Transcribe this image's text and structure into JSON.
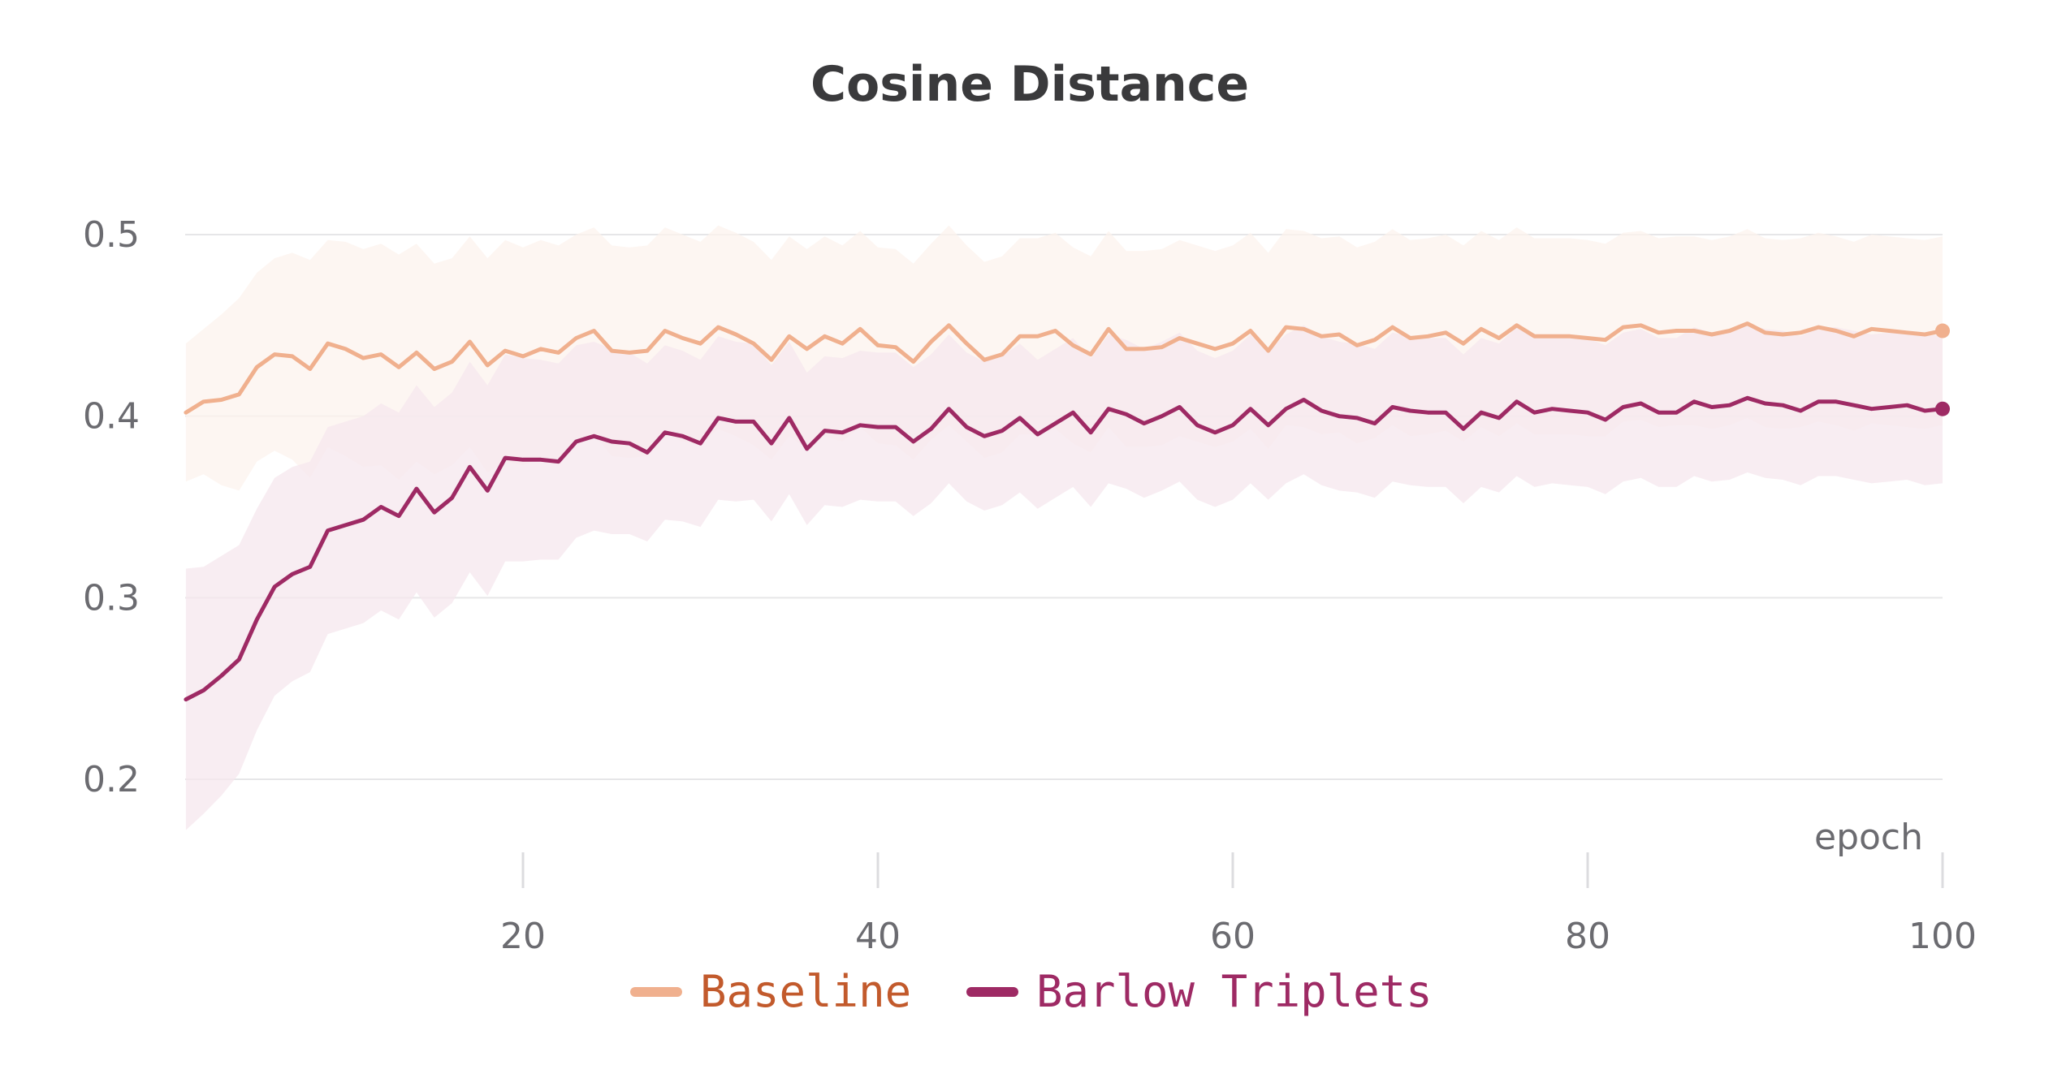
{
  "chart_data": {
    "type": "line",
    "title": "Cosine Distance",
    "xlabel": "epoch",
    "ylabel": "",
    "xlim": [
      1,
      100
    ],
    "ylim": [
      0.17,
      0.51
    ],
    "xticks": [
      20,
      40,
      60,
      80,
      100
    ],
    "xtick_labels": [
      "20",
      "40",
      "60",
      "80",
      "100"
    ],
    "yticks": [
      0.2,
      0.3,
      0.4,
      0.5
    ],
    "ytick_labels": [
      "0.2",
      "0.3",
      "0.4",
      "0.5"
    ],
    "grid": true,
    "legend_position": "bottom-center",
    "series": [
      {
        "name": "Baseline",
        "color": "#f0b08e",
        "band_color": "#fcf3ee",
        "label_color": "#c25a2c",
        "x": [
          1,
          2,
          3,
          4,
          5,
          6,
          7,
          8,
          9,
          10,
          11,
          12,
          13,
          14,
          15,
          16,
          17,
          18,
          19,
          20,
          21,
          22,
          23,
          24,
          25,
          26,
          27,
          28,
          29,
          30,
          31,
          32,
          33,
          34,
          35,
          36,
          37,
          38,
          39,
          40,
          41,
          42,
          43,
          44,
          45,
          46,
          47,
          48,
          49,
          50,
          51,
          52,
          53,
          54,
          55,
          56,
          57,
          58,
          59,
          60,
          61,
          62,
          63,
          64,
          65,
          66,
          67,
          68,
          69,
          70,
          71,
          72,
          73,
          74,
          75,
          76,
          77,
          78,
          79,
          80,
          81,
          82,
          83,
          84,
          85,
          86,
          87,
          88,
          89,
          90,
          91,
          92,
          93,
          94,
          95,
          96,
          97,
          98,
          99,
          100
        ],
        "y": [
          0.402,
          0.408,
          0.409,
          0.412,
          0.427,
          0.434,
          0.433,
          0.426,
          0.44,
          0.437,
          0.432,
          0.434,
          0.427,
          0.435,
          0.426,
          0.43,
          0.441,
          0.428,
          0.436,
          0.433,
          0.437,
          0.435,
          0.443,
          0.447,
          0.436,
          0.435,
          0.436,
          0.447,
          0.443,
          0.44,
          0.449,
          0.445,
          0.44,
          0.431,
          0.444,
          0.437,
          0.444,
          0.44,
          0.448,
          0.439,
          0.438,
          0.43,
          0.441,
          0.45,
          0.44,
          0.431,
          0.434,
          0.444,
          0.444,
          0.447,
          0.439,
          0.434,
          0.448,
          0.437,
          0.437,
          0.438,
          0.443,
          0.44,
          0.437,
          0.44,
          0.447,
          0.436,
          0.449,
          0.448,
          0.444,
          0.445,
          0.439,
          0.442,
          0.449,
          0.443,
          0.444,
          0.446,
          0.44,
          0.448,
          0.443,
          0.45,
          0.444,
          0.444,
          0.444,
          0.443,
          0.442,
          0.449,
          0.45,
          0.446,
          0.447,
          0.447,
          0.445,
          0.447,
          0.451,
          0.446,
          0.445,
          0.446,
          0.449,
          0.447,
          0.444,
          0.448,
          0.447,
          0.446,
          0.445,
          0.447
        ],
        "y_upper": [
          0.44,
          0.448,
          0.456,
          0.465,
          0.479,
          0.487,
          0.49,
          0.486,
          0.497,
          0.496,
          0.492,
          0.495,
          0.489,
          0.495,
          0.484,
          0.487,
          0.499,
          0.487,
          0.497,
          0.493,
          0.497,
          0.494,
          0.5,
          0.504,
          0.494,
          0.493,
          0.494,
          0.504,
          0.5,
          0.496,
          0.505,
          0.501,
          0.496,
          0.486,
          0.499,
          0.492,
          0.499,
          0.494,
          0.502,
          0.493,
          0.492,
          0.484,
          0.495,
          0.505,
          0.494,
          0.485,
          0.488,
          0.498,
          0.498,
          0.501,
          0.493,
          0.488,
          0.502,
          0.491,
          0.491,
          0.492,
          0.497,
          0.494,
          0.491,
          0.494,
          0.501,
          0.49,
          0.503,
          0.502,
          0.498,
          0.499,
          0.493,
          0.496,
          0.503,
          0.497,
          0.498,
          0.5,
          0.494,
          0.502,
          0.497,
          0.504,
          0.498,
          0.498,
          0.498,
          0.497,
          0.495,
          0.501,
          0.502,
          0.498,
          0.499,
          0.499,
          0.497,
          0.499,
          0.503,
          0.498,
          0.497,
          0.498,
          0.501,
          0.499,
          0.496,
          0.5,
          0.499,
          0.498,
          0.497,
          0.499
        ],
        "y_lower": [
          0.364,
          0.368,
          0.362,
          0.359,
          0.375,
          0.381,
          0.376,
          0.366,
          0.383,
          0.378,
          0.372,
          0.373,
          0.365,
          0.375,
          0.368,
          0.373,
          0.383,
          0.369,
          0.375,
          0.373,
          0.377,
          0.376,
          0.386,
          0.39,
          0.378,
          0.377,
          0.378,
          0.39,
          0.386,
          0.384,
          0.393,
          0.389,
          0.384,
          0.376,
          0.389,
          0.382,
          0.389,
          0.386,
          0.394,
          0.385,
          0.384,
          0.376,
          0.387,
          0.395,
          0.386,
          0.377,
          0.38,
          0.39,
          0.39,
          0.393,
          0.385,
          0.38,
          0.394,
          0.383,
          0.383,
          0.384,
          0.389,
          0.386,
          0.383,
          0.386,
          0.393,
          0.382,
          0.395,
          0.394,
          0.39,
          0.391,
          0.385,
          0.388,
          0.395,
          0.389,
          0.39,
          0.392,
          0.386,
          0.394,
          0.389,
          0.396,
          0.39,
          0.39,
          0.39,
          0.389,
          0.389,
          0.397,
          0.398,
          0.394,
          0.395,
          0.395,
          0.393,
          0.395,
          0.399,
          0.394,
          0.393,
          0.394,
          0.397,
          0.395,
          0.392,
          0.396,
          0.395,
          0.394,
          0.393,
          0.395
        ]
      },
      {
        "name": "Barlow Triplets",
        "color": "#9e2a64",
        "band_color": "#f5e7ee",
        "label_color": "#9e2a64",
        "x": [
          1,
          2,
          3,
          4,
          5,
          6,
          7,
          8,
          9,
          10,
          11,
          12,
          13,
          14,
          15,
          16,
          17,
          18,
          19,
          20,
          21,
          22,
          23,
          24,
          25,
          26,
          27,
          28,
          29,
          30,
          31,
          32,
          33,
          34,
          35,
          36,
          37,
          38,
          39,
          40,
          41,
          42,
          43,
          44,
          45,
          46,
          47,
          48,
          49,
          50,
          51,
          52,
          53,
          54,
          55,
          56,
          57,
          58,
          59,
          60,
          61,
          62,
          63,
          64,
          65,
          66,
          67,
          68,
          69,
          70,
          71,
          72,
          73,
          74,
          75,
          76,
          77,
          78,
          79,
          80,
          81,
          82,
          83,
          84,
          85,
          86,
          87,
          88,
          89,
          90,
          91,
          92,
          93,
          94,
          95,
          96,
          97,
          98,
          99,
          100
        ],
        "y": [
          0.244,
          0.249,
          0.257,
          0.266,
          0.288,
          0.306,
          0.313,
          0.317,
          0.337,
          0.34,
          0.343,
          0.35,
          0.345,
          0.36,
          0.347,
          0.355,
          0.372,
          0.359,
          0.377,
          0.376,
          0.376,
          0.375,
          0.386,
          0.389,
          0.386,
          0.385,
          0.38,
          0.391,
          0.389,
          0.385,
          0.399,
          0.397,
          0.397,
          0.385,
          0.399,
          0.382,
          0.392,
          0.391,
          0.395,
          0.394,
          0.394,
          0.386,
          0.393,
          0.404,
          0.394,
          0.389,
          0.392,
          0.399,
          0.39,
          0.396,
          0.402,
          0.391,
          0.404,
          0.401,
          0.396,
          0.4,
          0.405,
          0.395,
          0.391,
          0.395,
          0.404,
          0.395,
          0.404,
          0.409,
          0.403,
          0.4,
          0.399,
          0.396,
          0.405,
          0.403,
          0.402,
          0.402,
          0.393,
          0.402,
          0.399,
          0.408,
          0.402,
          0.404,
          0.403,
          0.402,
          0.398,
          0.405,
          0.407,
          0.402,
          0.402,
          0.408,
          0.405,
          0.406,
          0.41,
          0.407,
          0.406,
          0.403,
          0.408,
          0.408,
          0.406,
          0.404,
          0.405,
          0.406,
          0.403,
          0.404
        ],
        "y_upper": [
          0.316,
          0.317,
          0.323,
          0.329,
          0.349,
          0.366,
          0.372,
          0.375,
          0.394,
          0.397,
          0.4,
          0.407,
          0.402,
          0.417,
          0.405,
          0.413,
          0.43,
          0.417,
          0.434,
          0.432,
          0.431,
          0.429,
          0.439,
          0.441,
          0.437,
          0.435,
          0.429,
          0.439,
          0.436,
          0.431,
          0.444,
          0.441,
          0.44,
          0.428,
          0.441,
          0.424,
          0.433,
          0.432,
          0.436,
          0.435,
          0.435,
          0.427,
          0.434,
          0.445,
          0.435,
          0.43,
          0.433,
          0.44,
          0.431,
          0.437,
          0.443,
          0.432,
          0.445,
          0.442,
          0.437,
          0.441,
          0.446,
          0.436,
          0.432,
          0.436,
          0.445,
          0.436,
          0.445,
          0.45,
          0.444,
          0.441,
          0.44,
          0.437,
          0.446,
          0.444,
          0.443,
          0.443,
          0.434,
          0.443,
          0.44,
          0.449,
          0.443,
          0.445,
          0.444,
          0.443,
          0.439,
          0.446,
          0.448,
          0.443,
          0.443,
          0.449,
          0.446,
          0.447,
          0.451,
          0.448,
          0.447,
          0.444,
          0.449,
          0.449,
          0.447,
          0.445,
          0.446,
          0.447,
          0.444,
          0.445
        ],
        "y_lower": [
          0.172,
          0.181,
          0.191,
          0.203,
          0.227,
          0.246,
          0.254,
          0.259,
          0.28,
          0.283,
          0.286,
          0.293,
          0.288,
          0.303,
          0.289,
          0.297,
          0.314,
          0.301,
          0.32,
          0.32,
          0.321,
          0.321,
          0.333,
          0.337,
          0.335,
          0.335,
          0.331,
          0.343,
          0.342,
          0.339,
          0.354,
          0.353,
          0.354,
          0.342,
          0.357,
          0.34,
          0.351,
          0.35,
          0.354,
          0.353,
          0.353,
          0.345,
          0.352,
          0.363,
          0.353,
          0.348,
          0.351,
          0.358,
          0.349,
          0.355,
          0.361,
          0.35,
          0.363,
          0.36,
          0.355,
          0.359,
          0.364,
          0.354,
          0.35,
          0.354,
          0.363,
          0.354,
          0.363,
          0.368,
          0.362,
          0.359,
          0.358,
          0.355,
          0.364,
          0.362,
          0.361,
          0.361,
          0.352,
          0.361,
          0.358,
          0.367,
          0.361,
          0.363,
          0.362,
          0.361,
          0.357,
          0.364,
          0.366,
          0.361,
          0.361,
          0.367,
          0.364,
          0.365,
          0.369,
          0.366,
          0.365,
          0.362,
          0.367,
          0.367,
          0.365,
          0.363,
          0.364,
          0.365,
          0.362,
          0.363
        ]
      }
    ]
  }
}
